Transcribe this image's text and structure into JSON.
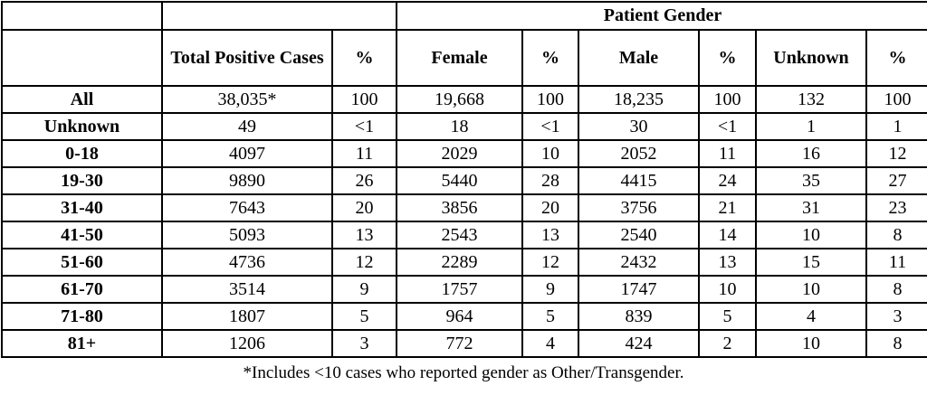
{
  "chart_data": {
    "type": "table",
    "group_header": "Patient Gender",
    "columns": [
      "",
      "Total Positive Cases",
      "%",
      "Female",
      "%",
      "Male",
      "%",
      "Unknown",
      "%"
    ],
    "rows": [
      {
        "label": "All",
        "values": [
          "38,035*",
          "100",
          "19,668",
          "100",
          "18,235",
          "100",
          "132",
          "100"
        ]
      },
      {
        "label": "Unknown",
        "values": [
          "49",
          "<1",
          "18",
          "<1",
          "30",
          "<1",
          "1",
          "1"
        ]
      },
      {
        "label": "0-18",
        "values": [
          "4097",
          "11",
          "2029",
          "10",
          "2052",
          "11",
          "16",
          "12"
        ]
      },
      {
        "label": "19-30",
        "values": [
          "9890",
          "26",
          "5440",
          "28",
          "4415",
          "24",
          "35",
          "27"
        ]
      },
      {
        "label": "31-40",
        "values": [
          "7643",
          "20",
          "3856",
          "20",
          "3756",
          "21",
          "31",
          "23"
        ]
      },
      {
        "label": "41-50",
        "values": [
          "5093",
          "13",
          "2543",
          "13",
          "2540",
          "14",
          "10",
          "8"
        ]
      },
      {
        "label": "51-60",
        "values": [
          "4736",
          "12",
          "2289",
          "12",
          "2432",
          "13",
          "15",
          "11"
        ]
      },
      {
        "label": "61-70",
        "values": [
          "3514",
          "9",
          "1757",
          "9",
          "1747",
          "10",
          "10",
          "8"
        ]
      },
      {
        "label": "71-80",
        "values": [
          "1807",
          "5",
          "964",
          "5",
          "839",
          "5",
          "4",
          "3"
        ]
      },
      {
        "label": "81+",
        "values": [
          "1206",
          "3",
          "772",
          "4",
          "424",
          "2",
          "10",
          "8"
        ]
      }
    ],
    "footnote": "*Includes <10 cases who reported gender as Other/Transgender.",
    "colors": {
      "border": "#000000",
      "text": "#000000",
      "background": "#ffffff"
    }
  }
}
